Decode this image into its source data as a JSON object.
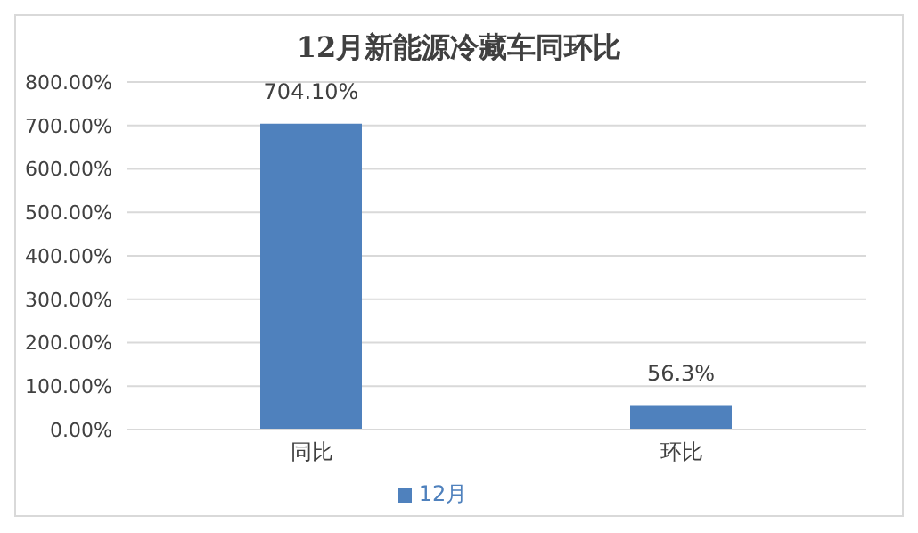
{
  "chart_data": {
    "type": "bar",
    "title": "12月新能源冷藏车同环比",
    "categories": [
      "同比",
      "环比"
    ],
    "series": [
      {
        "name": "12月",
        "color": "#4f81bd",
        "values": [
          704.1,
          56.3
        ],
        "value_labels": [
          "704.10%",
          "56.3%"
        ]
      }
    ],
    "ylim": [
      0,
      800
    ],
    "yticks": [
      {
        "value": 0,
        "label": "0.00%"
      },
      {
        "value": 100,
        "label": "100.00%"
      },
      {
        "value": 200,
        "label": "200.00%"
      },
      {
        "value": 300,
        "label": "300.00%"
      },
      {
        "value": 400,
        "label": "400.00%"
      },
      {
        "value": 500,
        "label": "500.00%"
      },
      {
        "value": 600,
        "label": "600.00%"
      },
      {
        "value": 700,
        "label": "700.00%"
      },
      {
        "value": 800,
        "label": "800.00%"
      }
    ],
    "grid": "y",
    "legend": "bottom"
  }
}
